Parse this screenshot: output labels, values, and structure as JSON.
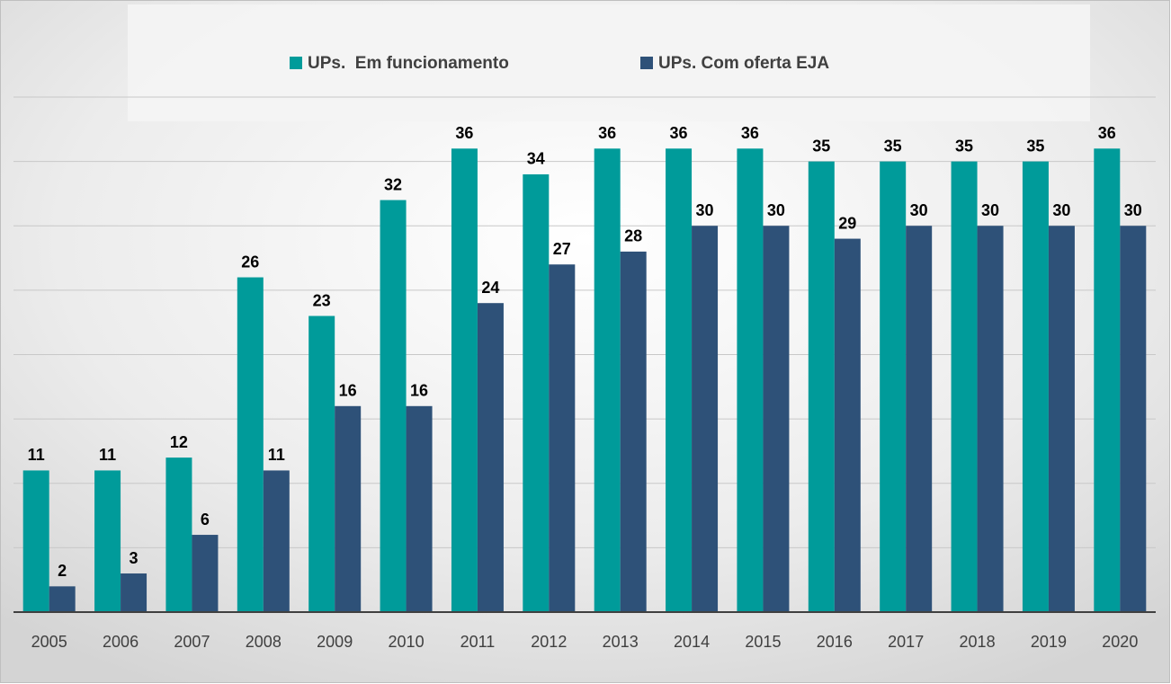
{
  "chart_data": {
    "type": "bar",
    "categories": [
      "2005",
      "2006",
      "2007",
      "2008",
      "2009",
      "2010",
      "2011",
      "2012",
      "2013",
      "2014",
      "2015",
      "2016",
      "2017",
      "2018",
      "2019",
      "2020"
    ],
    "series": [
      {
        "name": "UPs.  Em funcionamento",
        "color": "#009b9a",
        "values": [
          11,
          11,
          12,
          26,
          23,
          32,
          36,
          34,
          36,
          36,
          36,
          35,
          35,
          35,
          35,
          36
        ]
      },
      {
        "name": "UPs. Com oferta EJA",
        "color": "#2e5178",
        "values": [
          2,
          3,
          6,
          11,
          16,
          16,
          24,
          27,
          28,
          30,
          30,
          29,
          30,
          30,
          30,
          30
        ]
      }
    ],
    "ylim": [
      0,
      40
    ],
    "yticks": [
      0,
      5,
      10,
      15,
      20,
      25,
      30,
      35,
      40
    ],
    "grid": true,
    "legend": "top"
  }
}
